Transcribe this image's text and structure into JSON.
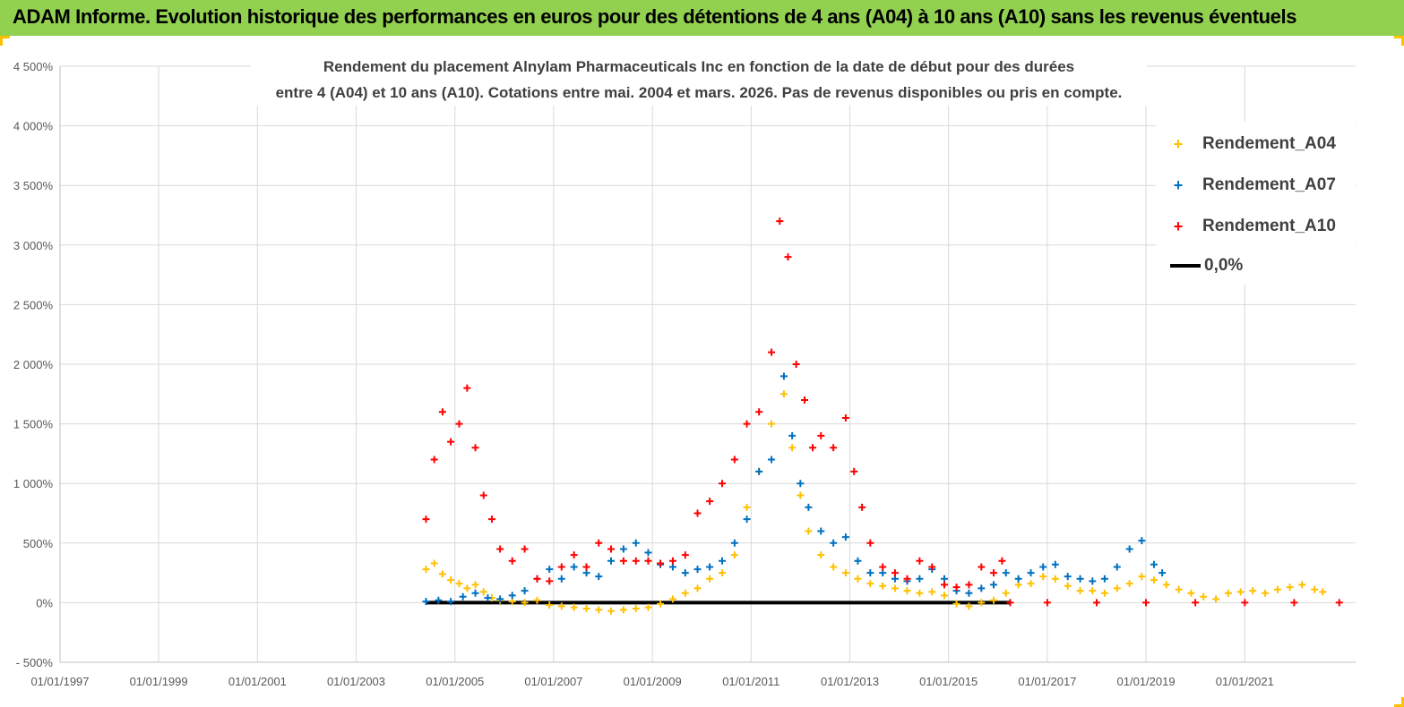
{
  "banner": {
    "title": "ADAM Informe. Evolution historique des performances en euros pour des détentions de 4 ans (A04) à 10 ans (A10) sans les revenus éventuels"
  },
  "colors": {
    "banner_bg": "#92d050",
    "accent_corners": "#ffc000",
    "A04": "#ffc000",
    "A07": "#0070c0",
    "A10": "#ff0000",
    "zero_line": "#000000",
    "grid": "#d9d9d9",
    "axis_text": "#595959"
  },
  "chart_data": {
    "type": "scatter",
    "title_lines": [
      "Rendement du placement Alnylam Pharmaceuticals Inc en fonction de la date de début pour des durées",
      "entre 4 (A04) et 10 ans (A10).  Cotations entre mai. 2004 et mars. 2026.  Pas de revenus disponibles ou pris  en compte."
    ],
    "xlabel": "",
    "ylabel": "",
    "x_range": [
      "1997-01-01",
      "2023-04-01"
    ],
    "x_tick_labels": [
      "01/01/1997",
      "01/01/1999",
      "01/01/2001",
      "01/01/2003",
      "01/01/2005",
      "01/01/2007",
      "01/01/2009",
      "01/01/2011",
      "01/01/2013",
      "01/01/2015",
      "01/01/2017",
      "01/01/2019",
      "01/01/2021"
    ],
    "y_range": [
      -500,
      4500
    ],
    "y_ticks": [
      -500,
      0,
      500,
      1000,
      1500,
      2000,
      2500,
      3000,
      3500,
      4000,
      4500
    ],
    "y_tick_labels": [
      "- 500%",
      "0%",
      "500%",
      "1 000%",
      "1 500%",
      "2 000%",
      "2 500%",
      "3 000%",
      "3 500%",
      "4 000%",
      "4 500%"
    ],
    "y_unit": "%",
    "grid": true,
    "legend_position": "top-right",
    "legend": [
      {
        "key": "A04",
        "label": "Rendement_A04",
        "marker": "+"
      },
      {
        "key": "A07",
        "label": "Rendement_A07",
        "marker": "+"
      },
      {
        "key": "A10",
        "label": "Rendement_A10",
        "marker": "+"
      },
      {
        "key": "zero",
        "label": "0,0%",
        "marker": "line"
      }
    ],
    "series": [
      {
        "name": "Rendement_A04",
        "points": [
          [
            "2004-06-01",
            280
          ],
          [
            "2004-08-01",
            330
          ],
          [
            "2004-10-01",
            240
          ],
          [
            "2004-12-01",
            190
          ],
          [
            "2005-02-01",
            160
          ],
          [
            "2005-04-01",
            120
          ],
          [
            "2005-06-01",
            150
          ],
          [
            "2005-08-01",
            90
          ],
          [
            "2005-10-01",
            40
          ],
          [
            "2005-12-01",
            20
          ],
          [
            "2006-03-01",
            10
          ],
          [
            "2006-06-01",
            0
          ],
          [
            "2006-09-01",
            20
          ],
          [
            "2006-12-01",
            -20
          ],
          [
            "2007-03-01",
            -30
          ],
          [
            "2007-06-01",
            -40
          ],
          [
            "2007-09-01",
            -50
          ],
          [
            "2007-12-01",
            -60
          ],
          [
            "2008-03-01",
            -70
          ],
          [
            "2008-06-01",
            -60
          ],
          [
            "2008-09-01",
            -50
          ],
          [
            "2008-12-01",
            -40
          ],
          [
            "2009-03-01",
            -10
          ],
          [
            "2009-06-01",
            30
          ],
          [
            "2009-09-01",
            80
          ],
          [
            "2009-12-01",
            120
          ],
          [
            "2010-03-01",
            200
          ],
          [
            "2010-06-01",
            250
          ],
          [
            "2010-09-01",
            400
          ],
          [
            "2010-12-01",
            800
          ],
          [
            "2011-03-01",
            1100
          ],
          [
            "2011-06-01",
            1500
          ],
          [
            "2011-09-01",
            1750
          ],
          [
            "2011-11-01",
            1300
          ],
          [
            "2012-01-01",
            900
          ],
          [
            "2012-03-01",
            600
          ],
          [
            "2012-06-01",
            400
          ],
          [
            "2012-09-01",
            300
          ],
          [
            "2012-12-01",
            250
          ],
          [
            "2013-03-01",
            200
          ],
          [
            "2013-06-01",
            160
          ],
          [
            "2013-09-01",
            140
          ],
          [
            "2013-12-01",
            120
          ],
          [
            "2014-03-01",
            100
          ],
          [
            "2014-06-01",
            80
          ],
          [
            "2014-09-01",
            90
          ],
          [
            "2014-12-01",
            60
          ],
          [
            "2015-03-01",
            -10
          ],
          [
            "2015-06-01",
            -30
          ],
          [
            "2015-09-01",
            0
          ],
          [
            "2015-12-01",
            20
          ],
          [
            "2016-03-01",
            80
          ],
          [
            "2016-06-01",
            150
          ],
          [
            "2016-09-01",
            160
          ],
          [
            "2016-12-01",
            220
          ],
          [
            "2017-03-01",
            200
          ],
          [
            "2017-06-01",
            140
          ],
          [
            "2017-09-01",
            100
          ],
          [
            "2017-12-01",
            100
          ],
          [
            "2018-03-01",
            80
          ],
          [
            "2018-06-01",
            120
          ],
          [
            "2018-09-01",
            160
          ],
          [
            "2018-12-01",
            220
          ],
          [
            "2019-03-01",
            190
          ],
          [
            "2019-06-01",
            150
          ],
          [
            "2019-09-01",
            110
          ],
          [
            "2019-12-01",
            80
          ],
          [
            "2020-03-01",
            50
          ],
          [
            "2020-06-01",
            30
          ],
          [
            "2020-09-01",
            80
          ],
          [
            "2020-12-01",
            90
          ],
          [
            "2021-03-01",
            100
          ],
          [
            "2021-06-01",
            80
          ],
          [
            "2021-09-01",
            110
          ],
          [
            "2021-12-01",
            130
          ],
          [
            "2022-03-01",
            150
          ],
          [
            "2022-06-01",
            110
          ],
          [
            "2022-08-01",
            90
          ]
        ]
      },
      {
        "name": "Rendement_A07",
        "points": [
          [
            "2004-06-01",
            10
          ],
          [
            "2004-09-01",
            20
          ],
          [
            "2004-12-01",
            10
          ],
          [
            "2005-03-01",
            50
          ],
          [
            "2005-06-01",
            80
          ],
          [
            "2005-09-01",
            40
          ],
          [
            "2005-12-01",
            30
          ],
          [
            "2006-03-01",
            60
          ],
          [
            "2006-06-01",
            100
          ],
          [
            "2006-09-01",
            200
          ],
          [
            "2006-12-01",
            280
          ],
          [
            "2007-03-01",
            200
          ],
          [
            "2007-06-01",
            300
          ],
          [
            "2007-09-01",
            250
          ],
          [
            "2007-12-01",
            220
          ],
          [
            "2008-03-01",
            350
          ],
          [
            "2008-06-01",
            450
          ],
          [
            "2008-09-01",
            500
          ],
          [
            "2008-12-01",
            420
          ],
          [
            "2009-03-01",
            320
          ],
          [
            "2009-06-01",
            300
          ],
          [
            "2009-09-01",
            250
          ],
          [
            "2009-12-01",
            280
          ],
          [
            "2010-03-01",
            300
          ],
          [
            "2010-06-01",
            350
          ],
          [
            "2010-09-01",
            500
          ],
          [
            "2010-12-01",
            700
          ],
          [
            "2011-03-01",
            1100
          ],
          [
            "2011-06-01",
            1200
          ],
          [
            "2011-09-01",
            1900
          ],
          [
            "2011-11-01",
            1400
          ],
          [
            "2012-01-01",
            1000
          ],
          [
            "2012-03-01",
            800
          ],
          [
            "2012-06-01",
            600
          ],
          [
            "2012-09-01",
            500
          ],
          [
            "2012-12-01",
            550
          ],
          [
            "2013-03-01",
            350
          ],
          [
            "2013-06-01",
            250
          ],
          [
            "2013-09-01",
            250
          ],
          [
            "2013-12-01",
            200
          ],
          [
            "2014-03-01",
            180
          ],
          [
            "2014-06-01",
            200
          ],
          [
            "2014-09-01",
            280
          ],
          [
            "2014-12-01",
            200
          ],
          [
            "2015-03-01",
            100
          ],
          [
            "2015-06-01",
            80
          ],
          [
            "2015-09-01",
            120
          ],
          [
            "2015-12-01",
            150
          ],
          [
            "2016-03-01",
            250
          ],
          [
            "2016-06-01",
            200
          ],
          [
            "2016-09-01",
            250
          ],
          [
            "2016-12-01",
            300
          ],
          [
            "2017-03-01",
            320
          ],
          [
            "2017-06-01",
            220
          ],
          [
            "2017-09-01",
            200
          ],
          [
            "2017-12-01",
            180
          ],
          [
            "2018-03-01",
            200
          ],
          [
            "2018-06-01",
            300
          ],
          [
            "2018-09-01",
            450
          ],
          [
            "2018-12-01",
            520
          ],
          [
            "2019-03-01",
            320
          ],
          [
            "2019-05-01",
            250
          ]
        ]
      },
      {
        "name": "Rendement_A10",
        "points": [
          [
            "2004-06-01",
            700
          ],
          [
            "2004-08-01",
            1200
          ],
          [
            "2004-10-01",
            1600
          ],
          [
            "2004-12-01",
            1350
          ],
          [
            "2005-02-01",
            1500
          ],
          [
            "2005-04-01",
            1800
          ],
          [
            "2005-06-01",
            1300
          ],
          [
            "2005-08-01",
            900
          ],
          [
            "2005-10-01",
            700
          ],
          [
            "2005-12-01",
            450
          ],
          [
            "2006-03-01",
            350
          ],
          [
            "2006-06-01",
            450
          ],
          [
            "2006-09-01",
            200
          ],
          [
            "2006-12-01",
            180
          ],
          [
            "2007-03-01",
            300
          ],
          [
            "2007-06-01",
            400
          ],
          [
            "2007-09-01",
            300
          ],
          [
            "2007-12-01",
            500
          ],
          [
            "2008-03-01",
            450
          ],
          [
            "2008-06-01",
            350
          ],
          [
            "2008-09-01",
            350
          ],
          [
            "2008-12-01",
            350
          ],
          [
            "2009-03-01",
            330
          ],
          [
            "2009-06-01",
            350
          ],
          [
            "2009-09-01",
            400
          ],
          [
            "2009-12-01",
            750
          ],
          [
            "2010-03-01",
            850
          ],
          [
            "2010-06-01",
            1000
          ],
          [
            "2010-09-01",
            1200
          ],
          [
            "2010-12-01",
            1500
          ],
          [
            "2011-03-01",
            1600
          ],
          [
            "2011-06-01",
            2100
          ],
          [
            "2011-08-01",
            3200
          ],
          [
            "2011-10-01",
            2900
          ],
          [
            "2011-12-01",
            2000
          ],
          [
            "2012-02-01",
            1700
          ],
          [
            "2012-04-01",
            1300
          ],
          [
            "2012-06-01",
            1400
          ],
          [
            "2012-09-01",
            1300
          ],
          [
            "2012-12-01",
            1550
          ],
          [
            "2013-02-01",
            1100
          ],
          [
            "2013-04-01",
            800
          ],
          [
            "2013-06-01",
            500
          ],
          [
            "2013-09-01",
            300
          ],
          [
            "2013-12-01",
            250
          ],
          [
            "2014-03-01",
            200
          ],
          [
            "2014-06-01",
            350
          ],
          [
            "2014-09-01",
            300
          ],
          [
            "2014-12-01",
            150
          ],
          [
            "2015-03-01",
            130
          ],
          [
            "2015-06-01",
            150
          ],
          [
            "2015-09-01",
            300
          ],
          [
            "2015-12-01",
            250
          ],
          [
            "2016-02-01",
            350
          ],
          [
            "2016-04-01",
            0
          ],
          [
            "2017-01-01",
            0
          ],
          [
            "2018-01-01",
            0
          ],
          [
            "2019-01-01",
            0
          ],
          [
            "2020-01-01",
            0
          ],
          [
            "2021-01-01",
            0
          ],
          [
            "2022-01-01",
            0
          ],
          [
            "2022-12-01",
            0
          ]
        ]
      }
    ],
    "reference_line": {
      "name": "0,0%",
      "y": 0,
      "x_from": "2004-06-01",
      "x_to": "2016-04-01"
    }
  }
}
